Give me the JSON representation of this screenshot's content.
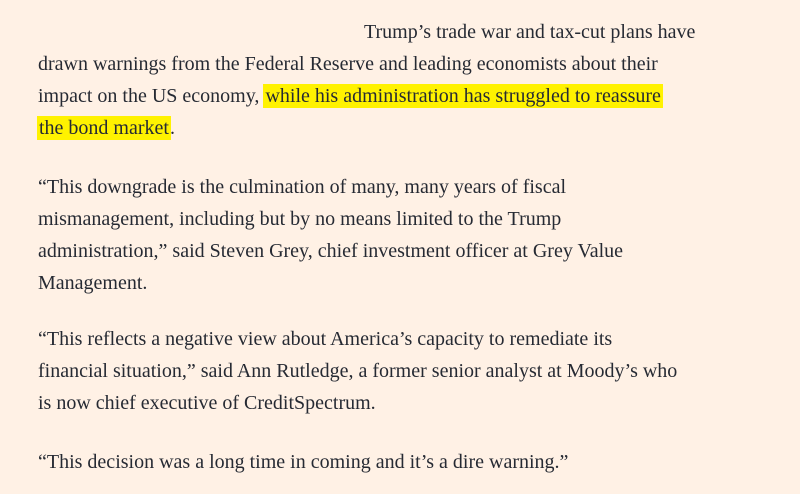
{
  "article": {
    "paragraphs": [
      {
        "lines": [
          {
            "text": "Trump’s trade war and tax-cut plans have"
          },
          {
            "text": "drawn warnings from the Federal Reserve and leading economists about their"
          },
          {
            "before": "impact on the US economy, ",
            "highlight": "while his administration has struggled to reassure"
          },
          {
            "highlight": "the bond market",
            "after": "."
          }
        ]
      },
      {
        "lines": [
          {
            "text": "“This downgrade is the culmination of many, many years of fiscal"
          },
          {
            "text": "mismanagement, including but by no means limited to the Trump"
          },
          {
            "text": "administration,” said Steven Grey, chief investment officer at Grey Value"
          },
          {
            "text": "Management."
          }
        ]
      },
      {
        "lines": [
          {
            "text": "“This reflects a negative view about America’s capacity to remediate its"
          },
          {
            "text": "financial situation,” said Ann Rutledge, a former senior analyst at Moody’s who"
          },
          {
            "text": "is now chief executive of CreditSpectrum."
          }
        ]
      },
      {
        "lines": [
          {
            "text": "“This decision was a long time in coming and it’s a dire warning.”"
          }
        ]
      }
    ],
    "highlight_color": "#fff200",
    "background_color": "#fff1e5"
  }
}
